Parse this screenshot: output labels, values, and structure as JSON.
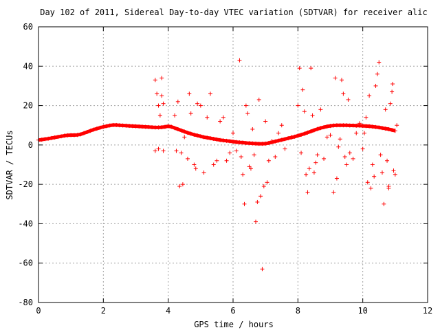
{
  "chart_data": {
    "type": "scatter",
    "title": "Day 102 of 2011, Sidereal Day-to-day VTEC variation (SDTVAR) for receiver alic",
    "xlabel": "GPS time / hours",
    "ylabel": "SDTVAR / TECUs",
    "xlim": [
      0,
      12
    ],
    "ylim": [
      -80,
      60
    ],
    "xticks": [
      0,
      2,
      4,
      6,
      8,
      10,
      12
    ],
    "yticks": [
      -80,
      -60,
      -40,
      -20,
      0,
      20,
      40,
      60
    ],
    "grid": true,
    "legend": "none",
    "marker": "+",
    "color": "#ff0000",
    "series": [
      {
        "values_note_omitted": null,
        "points": [
          [
            0.0,
            2.5
          ],
          [
            0.1,
            2.7
          ],
          [
            0.2,
            3.0
          ],
          [
            0.3,
            3.2
          ],
          [
            0.4,
            3.5
          ],
          [
            0.5,
            3.8
          ],
          [
            0.6,
            4.1
          ],
          [
            0.7,
            4.4
          ],
          [
            0.8,
            4.7
          ],
          [
            0.9,
            4.9
          ],
          [
            1.0,
            5.0
          ],
          [
            1.1,
            5.0
          ],
          [
            1.2,
            5.1
          ],
          [
            1.3,
            5.4
          ],
          [
            1.4,
            6.0
          ],
          [
            1.5,
            6.6
          ],
          [
            1.6,
            7.2
          ],
          [
            1.7,
            7.8
          ],
          [
            1.8,
            8.3
          ],
          [
            1.9,
            8.8
          ],
          [
            2.0,
            9.2
          ],
          [
            2.1,
            9.6
          ],
          [
            2.2,
            9.9
          ],
          [
            2.3,
            10.1
          ],
          [
            2.4,
            10.1
          ],
          [
            2.5,
            10.0
          ],
          [
            2.6,
            9.9
          ],
          [
            2.7,
            9.8
          ],
          [
            2.8,
            9.7
          ],
          [
            2.9,
            9.6
          ],
          [
            3.0,
            9.5
          ],
          [
            3.1,
            9.4
          ],
          [
            3.2,
            9.3
          ],
          [
            3.3,
            9.2
          ],
          [
            3.4,
            9.1
          ],
          [
            3.5,
            9.0
          ],
          [
            3.6,
            8.9
          ],
          [
            3.7,
            8.9
          ],
          [
            3.8,
            9.0
          ],
          [
            3.9,
            9.2
          ],
          [
            4.0,
            9.5
          ],
          [
            4.1,
            9.2
          ],
          [
            4.2,
            8.6
          ],
          [
            4.3,
            8.0
          ],
          [
            4.4,
            7.4
          ],
          [
            4.5,
            6.8
          ],
          [
            4.6,
            6.2
          ],
          [
            4.7,
            5.7
          ],
          [
            4.8,
            5.2
          ],
          [
            4.9,
            4.8
          ],
          [
            5.0,
            4.4
          ],
          [
            5.1,
            4.0
          ],
          [
            5.2,
            3.7
          ],
          [
            5.3,
            3.4
          ],
          [
            5.4,
            3.1
          ],
          [
            5.5,
            2.8
          ],
          [
            5.6,
            2.5
          ],
          [
            5.7,
            2.3
          ],
          [
            5.8,
            2.1
          ],
          [
            5.9,
            1.9
          ],
          [
            6.0,
            1.7
          ],
          [
            6.1,
            1.5
          ],
          [
            6.2,
            1.3
          ],
          [
            6.3,
            1.2
          ],
          [
            6.4,
            1.0
          ],
          [
            6.5,
            0.9
          ],
          [
            6.6,
            0.8
          ],
          [
            6.7,
            0.7
          ],
          [
            6.8,
            0.6
          ],
          [
            6.9,
            0.6
          ],
          [
            7.0,
            0.7
          ],
          [
            7.1,
            1.0
          ],
          [
            7.2,
            1.4
          ],
          [
            7.3,
            1.8
          ],
          [
            7.4,
            2.2
          ],
          [
            7.5,
            2.6
          ],
          [
            7.6,
            3.0
          ],
          [
            7.7,
            3.4
          ],
          [
            7.8,
            3.8
          ],
          [
            7.9,
            4.2
          ],
          [
            8.0,
            4.7
          ],
          [
            8.1,
            5.2
          ],
          [
            8.2,
            5.7
          ],
          [
            8.3,
            6.3
          ],
          [
            8.4,
            6.9
          ],
          [
            8.5,
            7.5
          ],
          [
            8.6,
            8.1
          ],
          [
            8.7,
            8.6
          ],
          [
            8.8,
            9.0
          ],
          [
            8.9,
            9.4
          ],
          [
            9.0,
            9.7
          ],
          [
            9.1,
            9.9
          ],
          [
            9.2,
            10.0
          ],
          [
            9.3,
            10.0
          ],
          [
            9.4,
            10.0
          ],
          [
            9.5,
            10.0
          ],
          [
            9.6,
            9.9
          ],
          [
            9.7,
            9.9
          ],
          [
            9.8,
            9.8
          ],
          [
            9.9,
            9.8
          ],
          [
            10.0,
            9.7
          ],
          [
            10.1,
            9.6
          ],
          [
            10.2,
            9.5
          ],
          [
            10.3,
            9.3
          ],
          [
            10.4,
            9.1
          ],
          [
            10.5,
            8.9
          ],
          [
            10.6,
            8.6
          ],
          [
            10.7,
            8.3
          ],
          [
            10.8,
            8.0
          ],
          [
            10.9,
            7.6
          ],
          [
            11.0,
            7.2
          ],
          [
            3.6,
            33
          ],
          [
            3.65,
            26
          ],
          [
            3.7,
            20
          ],
          [
            3.75,
            15
          ],
          [
            3.8,
            34
          ],
          [
            3.85,
            21
          ],
          [
            3.7,
            -2
          ],
          [
            3.6,
            -3
          ],
          [
            3.8,
            25
          ],
          [
            3.85,
            -3
          ],
          [
            4.2,
            15
          ],
          [
            4.25,
            -3
          ],
          [
            4.3,
            22
          ],
          [
            4.35,
            -21
          ],
          [
            4.4,
            -4
          ],
          [
            4.45,
            -20
          ],
          [
            4.5,
            4
          ],
          [
            4.6,
            -7
          ],
          [
            4.65,
            26
          ],
          [
            4.7,
            16
          ],
          [
            4.8,
            -10
          ],
          [
            4.85,
            -12
          ],
          [
            4.9,
            21
          ],
          [
            5.0,
            20
          ],
          [
            5.1,
            -14
          ],
          [
            5.2,
            14
          ],
          [
            5.3,
            26
          ],
          [
            5.4,
            -10
          ],
          [
            5.5,
            -8
          ],
          [
            5.6,
            12
          ],
          [
            5.7,
            14
          ],
          [
            5.8,
            -8
          ],
          [
            5.9,
            -4
          ],
          [
            6.0,
            6
          ],
          [
            6.1,
            -3
          ],
          [
            6.2,
            43
          ],
          [
            6.25,
            -6
          ],
          [
            6.3,
            -15
          ],
          [
            6.35,
            -30
          ],
          [
            6.4,
            20
          ],
          [
            6.45,
            16
          ],
          [
            6.5,
            -11
          ],
          [
            6.55,
            -12
          ],
          [
            6.6,
            8
          ],
          [
            6.65,
            -5
          ],
          [
            6.7,
            -39
          ],
          [
            6.75,
            -29
          ],
          [
            6.8,
            23
          ],
          [
            6.85,
            -26
          ],
          [
            6.9,
            -63
          ],
          [
            6.95,
            -21
          ],
          [
            7.0,
            12
          ],
          [
            7.05,
            -19
          ],
          [
            7.1,
            -8
          ],
          [
            7.2,
            2
          ],
          [
            7.3,
            -6
          ],
          [
            7.4,
            6
          ],
          [
            7.5,
            10
          ],
          [
            7.6,
            -2
          ],
          [
            7.8,
            4
          ],
          [
            8.0,
            20
          ],
          [
            8.05,
            39
          ],
          [
            8.1,
            -4
          ],
          [
            8.15,
            28
          ],
          [
            8.2,
            17
          ],
          [
            8.25,
            -15
          ],
          [
            8.3,
            -24
          ],
          [
            8.35,
            -12
          ],
          [
            8.4,
            39
          ],
          [
            8.45,
            15
          ],
          [
            8.5,
            -14
          ],
          [
            8.55,
            -9
          ],
          [
            8.6,
            -5
          ],
          [
            8.7,
            18
          ],
          [
            8.8,
            -7
          ],
          [
            8.9,
            4
          ],
          [
            9.0,
            5
          ],
          [
            9.1,
            -24
          ],
          [
            9.15,
            34
          ],
          [
            9.2,
            -17
          ],
          [
            9.25,
            -1
          ],
          [
            9.3,
            3
          ],
          [
            9.35,
            33
          ],
          [
            9.4,
            26
          ],
          [
            9.45,
            -6
          ],
          [
            9.5,
            -10
          ],
          [
            9.55,
            23
          ],
          [
            9.6,
            -4
          ],
          [
            9.7,
            -7
          ],
          [
            9.8,
            6
          ],
          [
            9.9,
            11
          ],
          [
            10.0,
            -2
          ],
          [
            10.05,
            6
          ],
          [
            10.1,
            14
          ],
          [
            10.15,
            -19
          ],
          [
            10.2,
            25
          ],
          [
            10.25,
            -22
          ],
          [
            10.3,
            -10
          ],
          [
            10.35,
            -16
          ],
          [
            10.4,
            30
          ],
          [
            10.45,
            36
          ],
          [
            10.5,
            42
          ],
          [
            10.55,
            -5
          ],
          [
            10.6,
            -14
          ],
          [
            10.65,
            -30
          ],
          [
            10.7,
            18
          ],
          [
            10.75,
            -8
          ],
          [
            10.8,
            -22
          ],
          [
            10.85,
            21
          ],
          [
            10.9,
            27
          ],
          [
            10.95,
            -13
          ],
          [
            11.0,
            -15
          ],
          [
            10.92,
            31
          ],
          [
            11.05,
            10
          ],
          [
            10.8,
            -21
          ]
        ]
      }
    ]
  }
}
